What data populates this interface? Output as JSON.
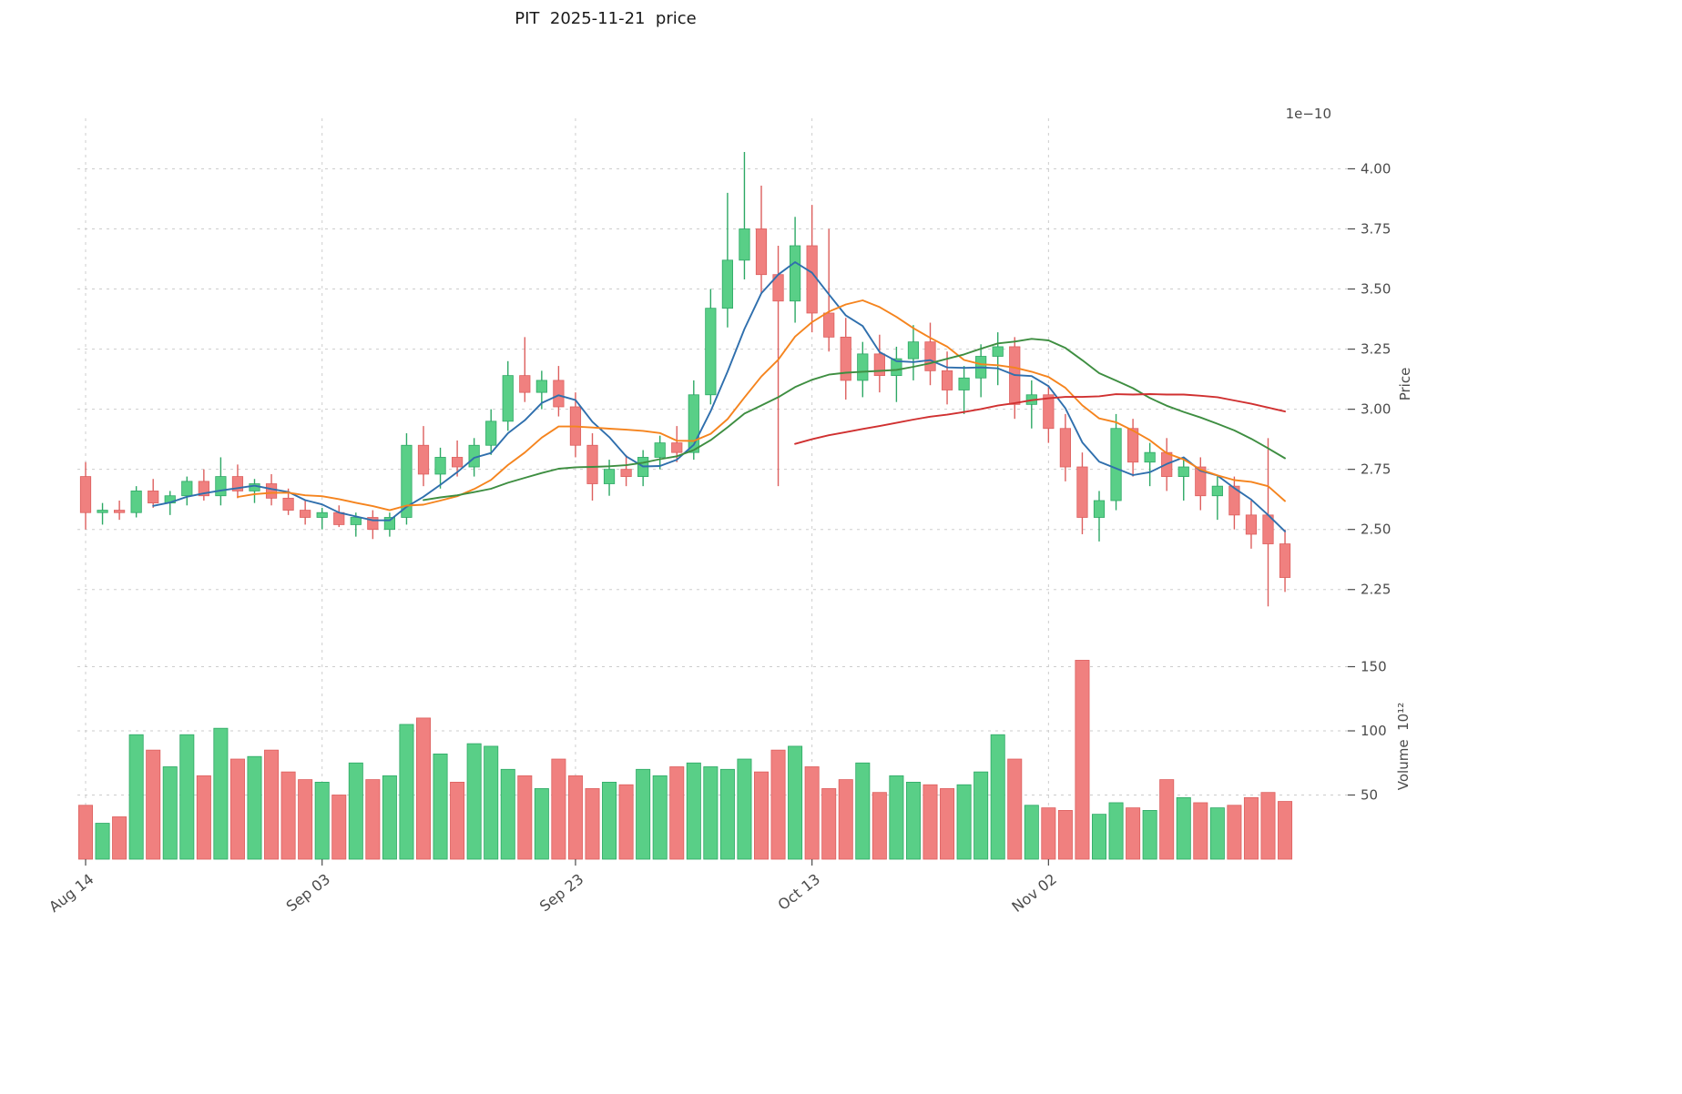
{
  "chart_data": {
    "type": "candlestick+volume",
    "title": "PIT  2025-11-21  price",
    "ylabel": "Price",
    "ylabel2": "Volume  10¹²",
    "offset_text": "1e−10",
    "legend": "none",
    "grid": true,
    "x_tick_labels": [
      "Aug 14",
      "Sep 03",
      "Sep 23",
      "Oct 13",
      "Nov 02"
    ],
    "x_tick_indices": [
      0,
      14,
      29,
      43,
      57
    ],
    "price_ticks": [
      2.25,
      2.5,
      2.75,
      3.0,
      3.25,
      3.5,
      3.75,
      4.0
    ],
    "price_ylim": [
      2.09,
      4.21
    ],
    "volume_ticks": [
      50,
      100,
      150
    ],
    "volume_ylim": [
      0,
      175
    ],
    "colors": {
      "up": "#59cf87",
      "up_edge": "#2da865",
      "down": "#f0807f",
      "down_edge": "#dd5f5e",
      "ma_fast": "#2f6fad",
      "ma_mid": "#f5841e",
      "ma_slow": "#3e8e41",
      "ma_long": "#d03030",
      "grid": "#cdcdcd",
      "tick": "#4b4b4b"
    },
    "moving_averages": [
      {
        "window": 5,
        "color_key": "ma_fast"
      },
      {
        "window": 10,
        "color_key": "ma_mid"
      },
      {
        "window": 21,
        "color_key": "ma_slow"
      },
      {
        "window": 43,
        "color_key": "ma_long"
      }
    ],
    "ohlcv_columns": [
      "date",
      "open",
      "high",
      "low",
      "close",
      "volume"
    ],
    "ohlcv": [
      [
        "2025-08-14",
        2.72,
        2.78,
        2.5,
        2.57,
        42
      ],
      [
        "2025-08-15",
        2.57,
        2.61,
        2.52,
        2.58,
        28
      ],
      [
        "2025-08-18",
        2.58,
        2.62,
        2.54,
        2.57,
        33
      ],
      [
        "2025-08-19",
        2.57,
        2.68,
        2.55,
        2.66,
        97
      ],
      [
        "2025-08-20",
        2.66,
        2.71,
        2.59,
        2.61,
        85
      ],
      [
        "2025-08-21",
        2.61,
        2.66,
        2.56,
        2.64,
        72
      ],
      [
        "2025-08-22",
        2.64,
        2.72,
        2.6,
        2.7,
        97
      ],
      [
        "2025-08-25",
        2.7,
        2.75,
        2.62,
        2.64,
        65
      ],
      [
        "2025-08-26",
        2.64,
        2.8,
        2.6,
        2.72,
        102
      ],
      [
        "2025-08-27",
        2.72,
        2.77,
        2.63,
        2.66,
        78
      ],
      [
        "2025-08-28",
        2.66,
        2.71,
        2.61,
        2.69,
        80
      ],
      [
        "2025-08-29",
        2.69,
        2.73,
        2.6,
        2.63,
        85
      ],
      [
        "2025-09-01",
        2.63,
        2.67,
        2.56,
        2.58,
        68
      ],
      [
        "2025-09-02",
        2.58,
        2.62,
        2.52,
        2.55,
        62
      ],
      [
        "2025-09-03",
        2.55,
        2.59,
        2.5,
        2.57,
        60
      ],
      [
        "2025-09-04",
        2.57,
        2.6,
        2.51,
        2.52,
        50
      ],
      [
        "2025-09-05",
        2.52,
        2.57,
        2.47,
        2.55,
        75
      ],
      [
        "2025-09-08",
        2.55,
        2.58,
        2.46,
        2.5,
        62
      ],
      [
        "2025-09-09",
        2.5,
        2.57,
        2.47,
        2.55,
        65
      ],
      [
        "2025-09-10",
        2.55,
        2.9,
        2.52,
        2.85,
        105
      ],
      [
        "2025-09-11",
        2.85,
        2.93,
        2.68,
        2.73,
        110
      ],
      [
        "2025-09-12",
        2.73,
        2.84,
        2.67,
        2.8,
        82
      ],
      [
        "2025-09-15",
        2.8,
        2.87,
        2.72,
        2.76,
        60
      ],
      [
        "2025-09-16",
        2.76,
        2.88,
        2.72,
        2.85,
        90
      ],
      [
        "2025-09-17",
        2.85,
        3.0,
        2.81,
        2.95,
        88
      ],
      [
        "2025-09-18",
        2.95,
        3.2,
        2.91,
        3.14,
        70
      ],
      [
        "2025-09-19",
        3.14,
        3.3,
        3.03,
        3.07,
        65
      ],
      [
        "2025-09-22",
        3.07,
        3.16,
        3.0,
        3.12,
        55
      ],
      [
        "2025-09-23",
        3.12,
        3.18,
        2.97,
        3.01,
        78
      ],
      [
        "2025-09-24",
        3.01,
        3.07,
        2.8,
        2.85,
        65
      ],
      [
        "2025-09-25",
        2.85,
        2.9,
        2.62,
        2.69,
        55
      ],
      [
        "2025-09-26",
        2.69,
        2.79,
        2.64,
        2.75,
        60
      ],
      [
        "2025-09-29",
        2.75,
        2.81,
        2.68,
        2.72,
        58
      ],
      [
        "2025-09-30",
        2.72,
        2.83,
        2.68,
        2.8,
        70
      ],
      [
        "2025-10-01",
        2.8,
        2.89,
        2.75,
        2.86,
        65
      ],
      [
        "2025-10-02",
        2.86,
        2.93,
        2.78,
        2.82,
        72
      ],
      [
        "2025-10-03",
        2.82,
        3.12,
        2.79,
        3.06,
        75
      ],
      [
        "2025-10-06",
        3.06,
        3.5,
        3.02,
        3.42,
        72
      ],
      [
        "2025-10-07",
        3.42,
        3.9,
        3.34,
        3.62,
        70
      ],
      [
        "2025-10-08",
        3.62,
        4.07,
        3.54,
        3.75,
        78
      ],
      [
        "2025-10-09",
        3.75,
        3.93,
        3.48,
        3.56,
        68
      ],
      [
        "2025-10-10",
        3.56,
        3.68,
        2.68,
        3.45,
        85
      ],
      [
        "2025-10-13",
        3.45,
        3.8,
        3.36,
        3.68,
        88
      ],
      [
        "2025-10-14",
        3.68,
        3.85,
        3.32,
        3.4,
        72
      ],
      [
        "2025-10-15",
        3.4,
        3.75,
        3.24,
        3.3,
        55
      ],
      [
        "2025-10-16",
        3.3,
        3.38,
        3.04,
        3.12,
        62
      ],
      [
        "2025-10-17",
        3.12,
        3.28,
        3.05,
        3.23,
        75
      ],
      [
        "2025-10-20",
        3.23,
        3.31,
        3.07,
        3.14,
        52
      ],
      [
        "2025-10-21",
        3.14,
        3.26,
        3.03,
        3.21,
        65
      ],
      [
        "2025-10-22",
        3.21,
        3.35,
        3.12,
        3.28,
        60
      ],
      [
        "2025-10-23",
        3.28,
        3.36,
        3.1,
        3.16,
        58
      ],
      [
        "2025-10-24",
        3.16,
        3.24,
        3.02,
        3.08,
        55
      ],
      [
        "2025-10-27",
        3.08,
        3.18,
        2.98,
        3.13,
        58
      ],
      [
        "2025-10-28",
        3.13,
        3.27,
        3.05,
        3.22,
        68
      ],
      [
        "2025-10-29",
        3.22,
        3.32,
        3.1,
        3.26,
        97
      ],
      [
        "2025-10-30",
        3.26,
        3.3,
        2.96,
        3.02,
        78
      ],
      [
        "2025-10-31",
        3.02,
        3.12,
        2.92,
        3.06,
        42
      ],
      [
        "2025-11-03",
        3.06,
        3.1,
        2.86,
        2.92,
        40
      ],
      [
        "2025-11-04",
        2.92,
        2.98,
        2.7,
        2.76,
        38
      ],
      [
        "2025-11-05",
        2.76,
        2.82,
        2.48,
        2.55,
        155
      ],
      [
        "2025-11-06",
        2.55,
        2.66,
        2.45,
        2.62,
        35
      ],
      [
        "2025-11-07",
        2.62,
        2.98,
        2.58,
        2.92,
        44
      ],
      [
        "2025-11-10",
        2.92,
        2.96,
        2.72,
        2.78,
        40
      ],
      [
        "2025-11-11",
        2.78,
        2.86,
        2.68,
        2.82,
        38
      ],
      [
        "2025-11-12",
        2.82,
        2.88,
        2.66,
        2.72,
        62
      ],
      [
        "2025-11-13",
        2.72,
        2.8,
        2.62,
        2.76,
        48
      ],
      [
        "2025-11-14",
        2.76,
        2.8,
        2.58,
        2.64,
        44
      ],
      [
        "2025-11-17",
        2.64,
        2.72,
        2.54,
        2.68,
        40
      ],
      [
        "2025-11-18",
        2.68,
        2.72,
        2.5,
        2.56,
        42
      ],
      [
        "2025-11-19",
        2.56,
        2.62,
        2.42,
        2.48,
        48
      ],
      [
        "2025-11-20",
        2.56,
        2.88,
        2.18,
        2.44,
        52
      ],
      [
        "2025-11-21",
        2.44,
        2.5,
        2.24,
        2.3,
        45
      ]
    ]
  }
}
